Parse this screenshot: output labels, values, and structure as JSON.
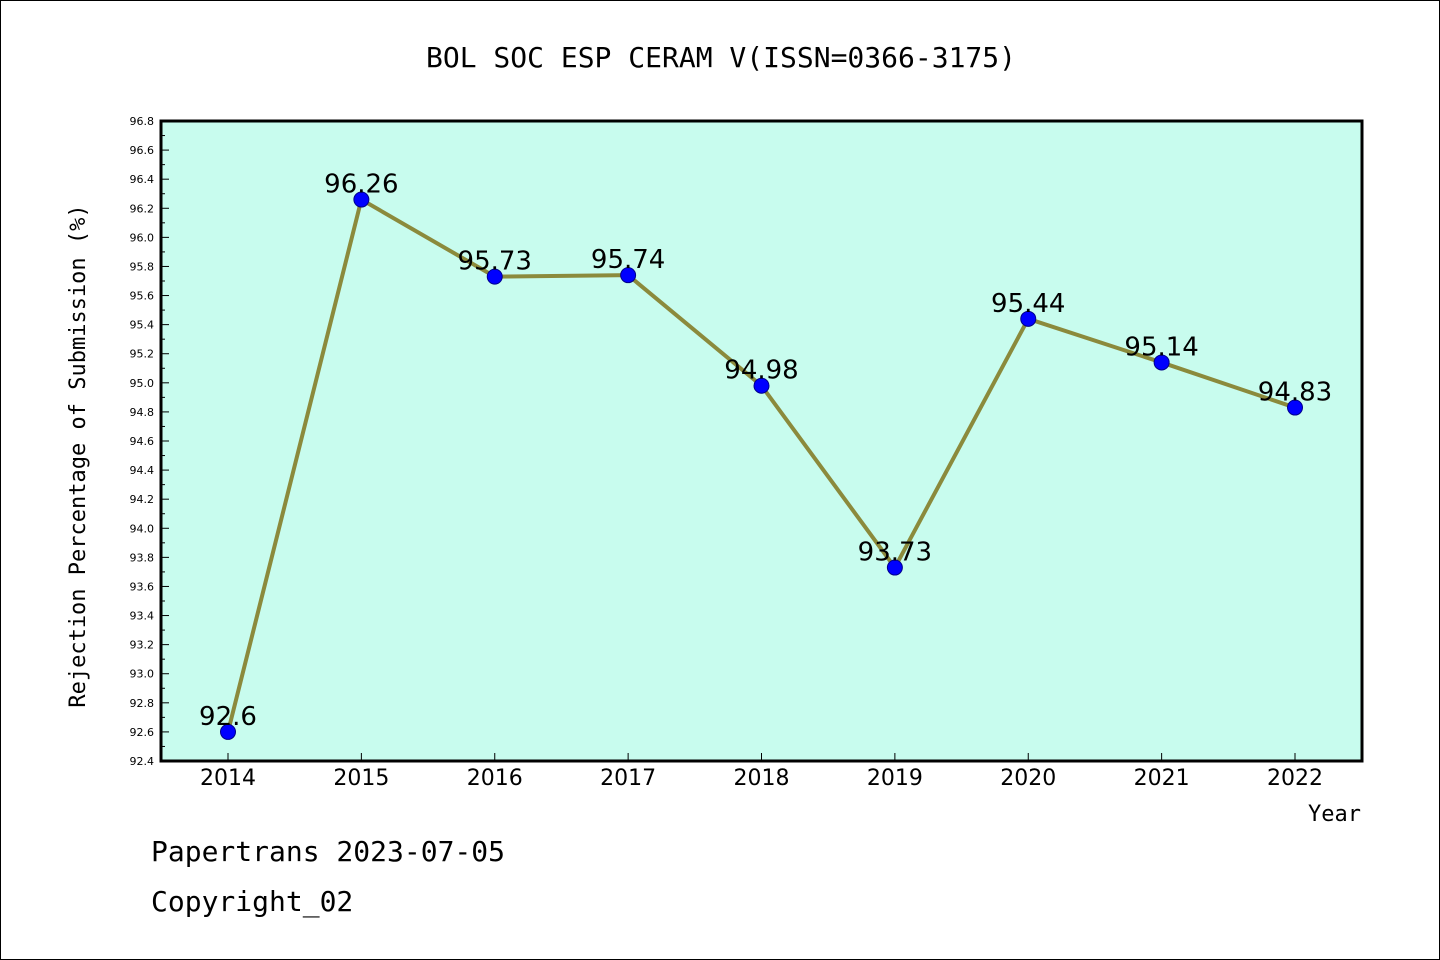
{
  "chart_data": {
    "type": "line",
    "title": "BOL SOC ESP CERAM V(ISSN=0366-3175)",
    "xlabel": "Year",
    "ylabel": "Rejection Percentage of Submission (%)",
    "categories": [
      "2014",
      "2015",
      "2016",
      "2017",
      "2018",
      "2019",
      "2020",
      "2021",
      "2022"
    ],
    "series": [
      {
        "values": [
          92.6,
          96.26,
          95.73,
          95.74,
          94.98,
          93.73,
          95.44,
          95.14,
          94.83
        ],
        "labels": [
          "92.6",
          "96.26",
          "95.73",
          "95.74",
          "94.98",
          "93.73",
          "95.44",
          "95.14",
          "94.83"
        ]
      }
    ],
    "ylim": [
      92.4,
      96.8
    ],
    "yticks": [
      "92.4",
      "92.6",
      "92.8",
      "93.0",
      "93.2",
      "93.4",
      "93.6",
      "93.8",
      "94.0",
      "94.2",
      "94.4",
      "94.6",
      "94.8",
      "95.0",
      "95.2",
      "95.4",
      "95.6",
      "95.8",
      "96.0",
      "96.2",
      "96.4",
      "96.6",
      "96.8"
    ],
    "grid": false,
    "colors": {
      "plot_background": "#c8fcee",
      "line": "#8b8a3c",
      "marker": "#0000ff"
    }
  },
  "footer": {
    "line1": "Papertrans 2023-07-05",
    "line2": "Copyright_02"
  }
}
